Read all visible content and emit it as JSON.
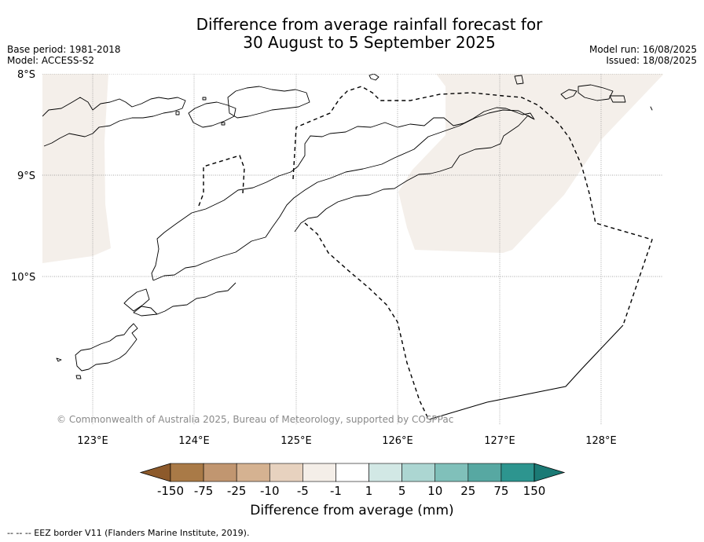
{
  "header": {
    "title_line1": "Difference from average rainfall forecast for",
    "title_line2": "30 August to 5 September 2025",
    "base_period": "Base period: 1981-2018",
    "model": "Model: ACCESS-S2",
    "model_run": "Model run: 16/08/2025",
    "issued": "Issued: 18/08/2025"
  },
  "map": {
    "lat_labels": [
      "8°S",
      "9°S",
      "10°S"
    ],
    "lon_labels": [
      "123°E",
      "124°E",
      "125°E",
      "126°E",
      "127°E",
      "128°E"
    ],
    "credit": "© Commonwealth of Australia 2025, Bureau of Meteorology, supported by COSPPac",
    "anomaly_fill_color": "#f4efea",
    "coastline_color": "#000000",
    "eez_border_style": "dashed"
  },
  "colorbar": {
    "title": "Difference from average (mm)",
    "tick_labels": [
      "-150",
      "-75",
      "-25",
      "-10",
      "-5",
      "-1",
      "1",
      "5",
      "10",
      "25",
      "75",
      "150"
    ],
    "colors": [
      "#8d5a2b",
      "#a97a47",
      "#c19670",
      "#d5b291",
      "#e7d2bf",
      "#f4eee8",
      "#ffffff",
      "#d2e8e5",
      "#acd6d2",
      "#80c0ba",
      "#57a8a2",
      "#2d958f",
      "#1b7a75"
    ]
  },
  "footnote": "--  --  -- EEZ border V11 (Flanders Marine Institute, 2019)."
}
